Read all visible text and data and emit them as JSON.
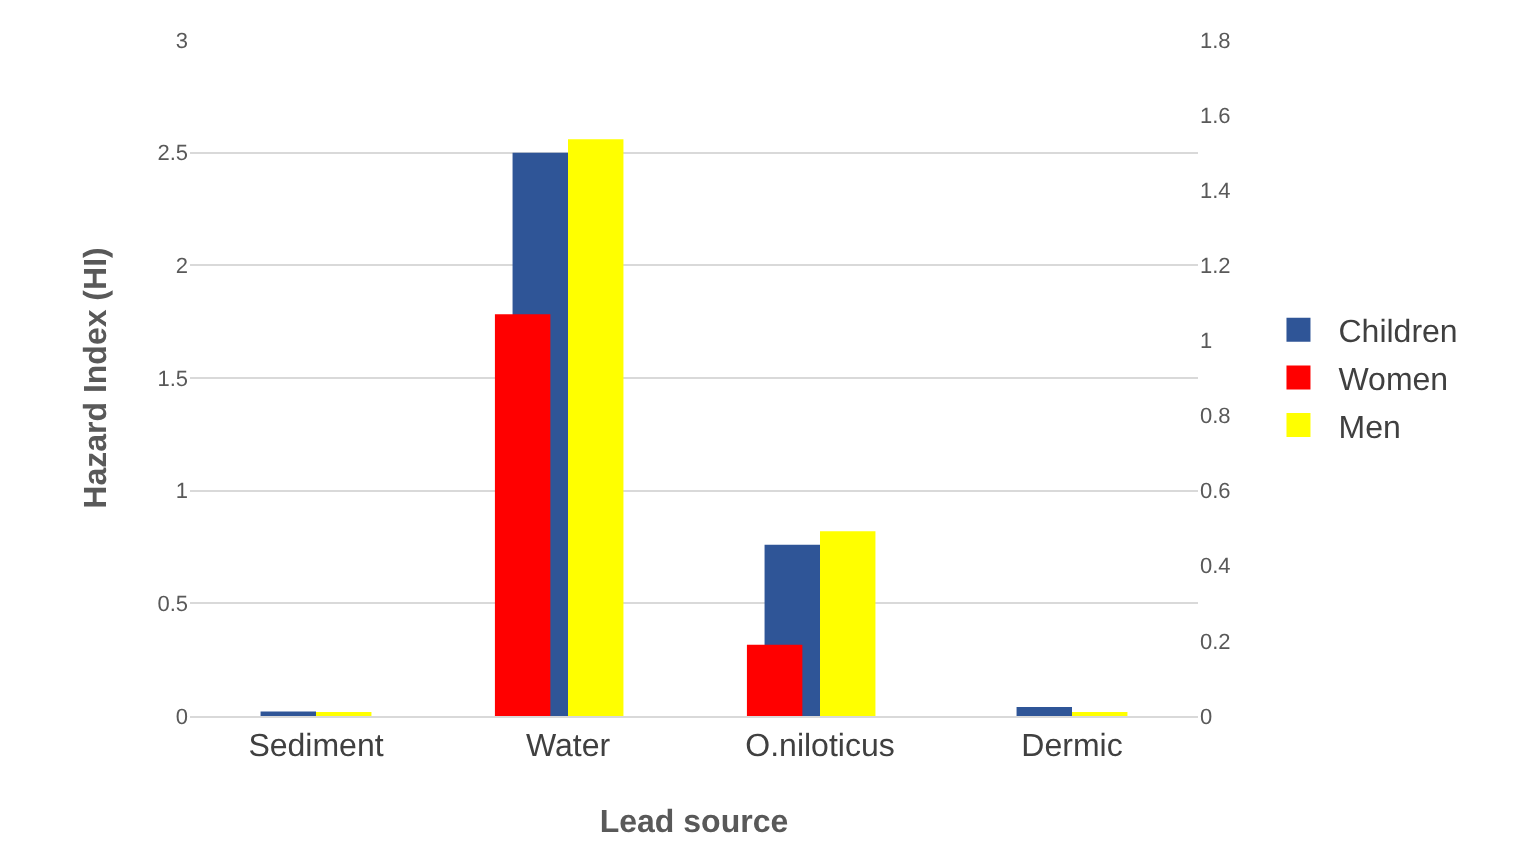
{
  "chart_data": {
    "type": "bar",
    "xlabel": "Lead source",
    "ylabel": "Hazard Index (HI)",
    "categories": [
      "Sediment",
      "Water",
      "O.niloticus",
      "Dermic"
    ],
    "series": [
      {
        "name": "Children",
        "color": "#2f5597",
        "values": [
          0.02,
          2.5,
          0.76,
          0.04
        ]
      },
      {
        "name": "Women",
        "color": "#ff0000",
        "axis": "y2",
        "values": [
          0,
          1.07,
          0.19,
          0
        ]
      },
      {
        "name": "Men",
        "color": "#ffff00",
        "values": [
          0.01,
          2.56,
          0.82,
          0.01
        ]
      }
    ],
    "ylim": [
      0,
      3
    ],
    "yticks": [
      0,
      0.5,
      1,
      1.5,
      2,
      2.5,
      3
    ],
    "y2lim": [
      0,
      1.8
    ],
    "y2ticks": [
      0,
      0.2,
      0.4,
      0.6,
      0.8,
      1,
      1.2,
      1.4,
      1.6,
      1.8
    ],
    "grid": "y",
    "legend": "right"
  }
}
